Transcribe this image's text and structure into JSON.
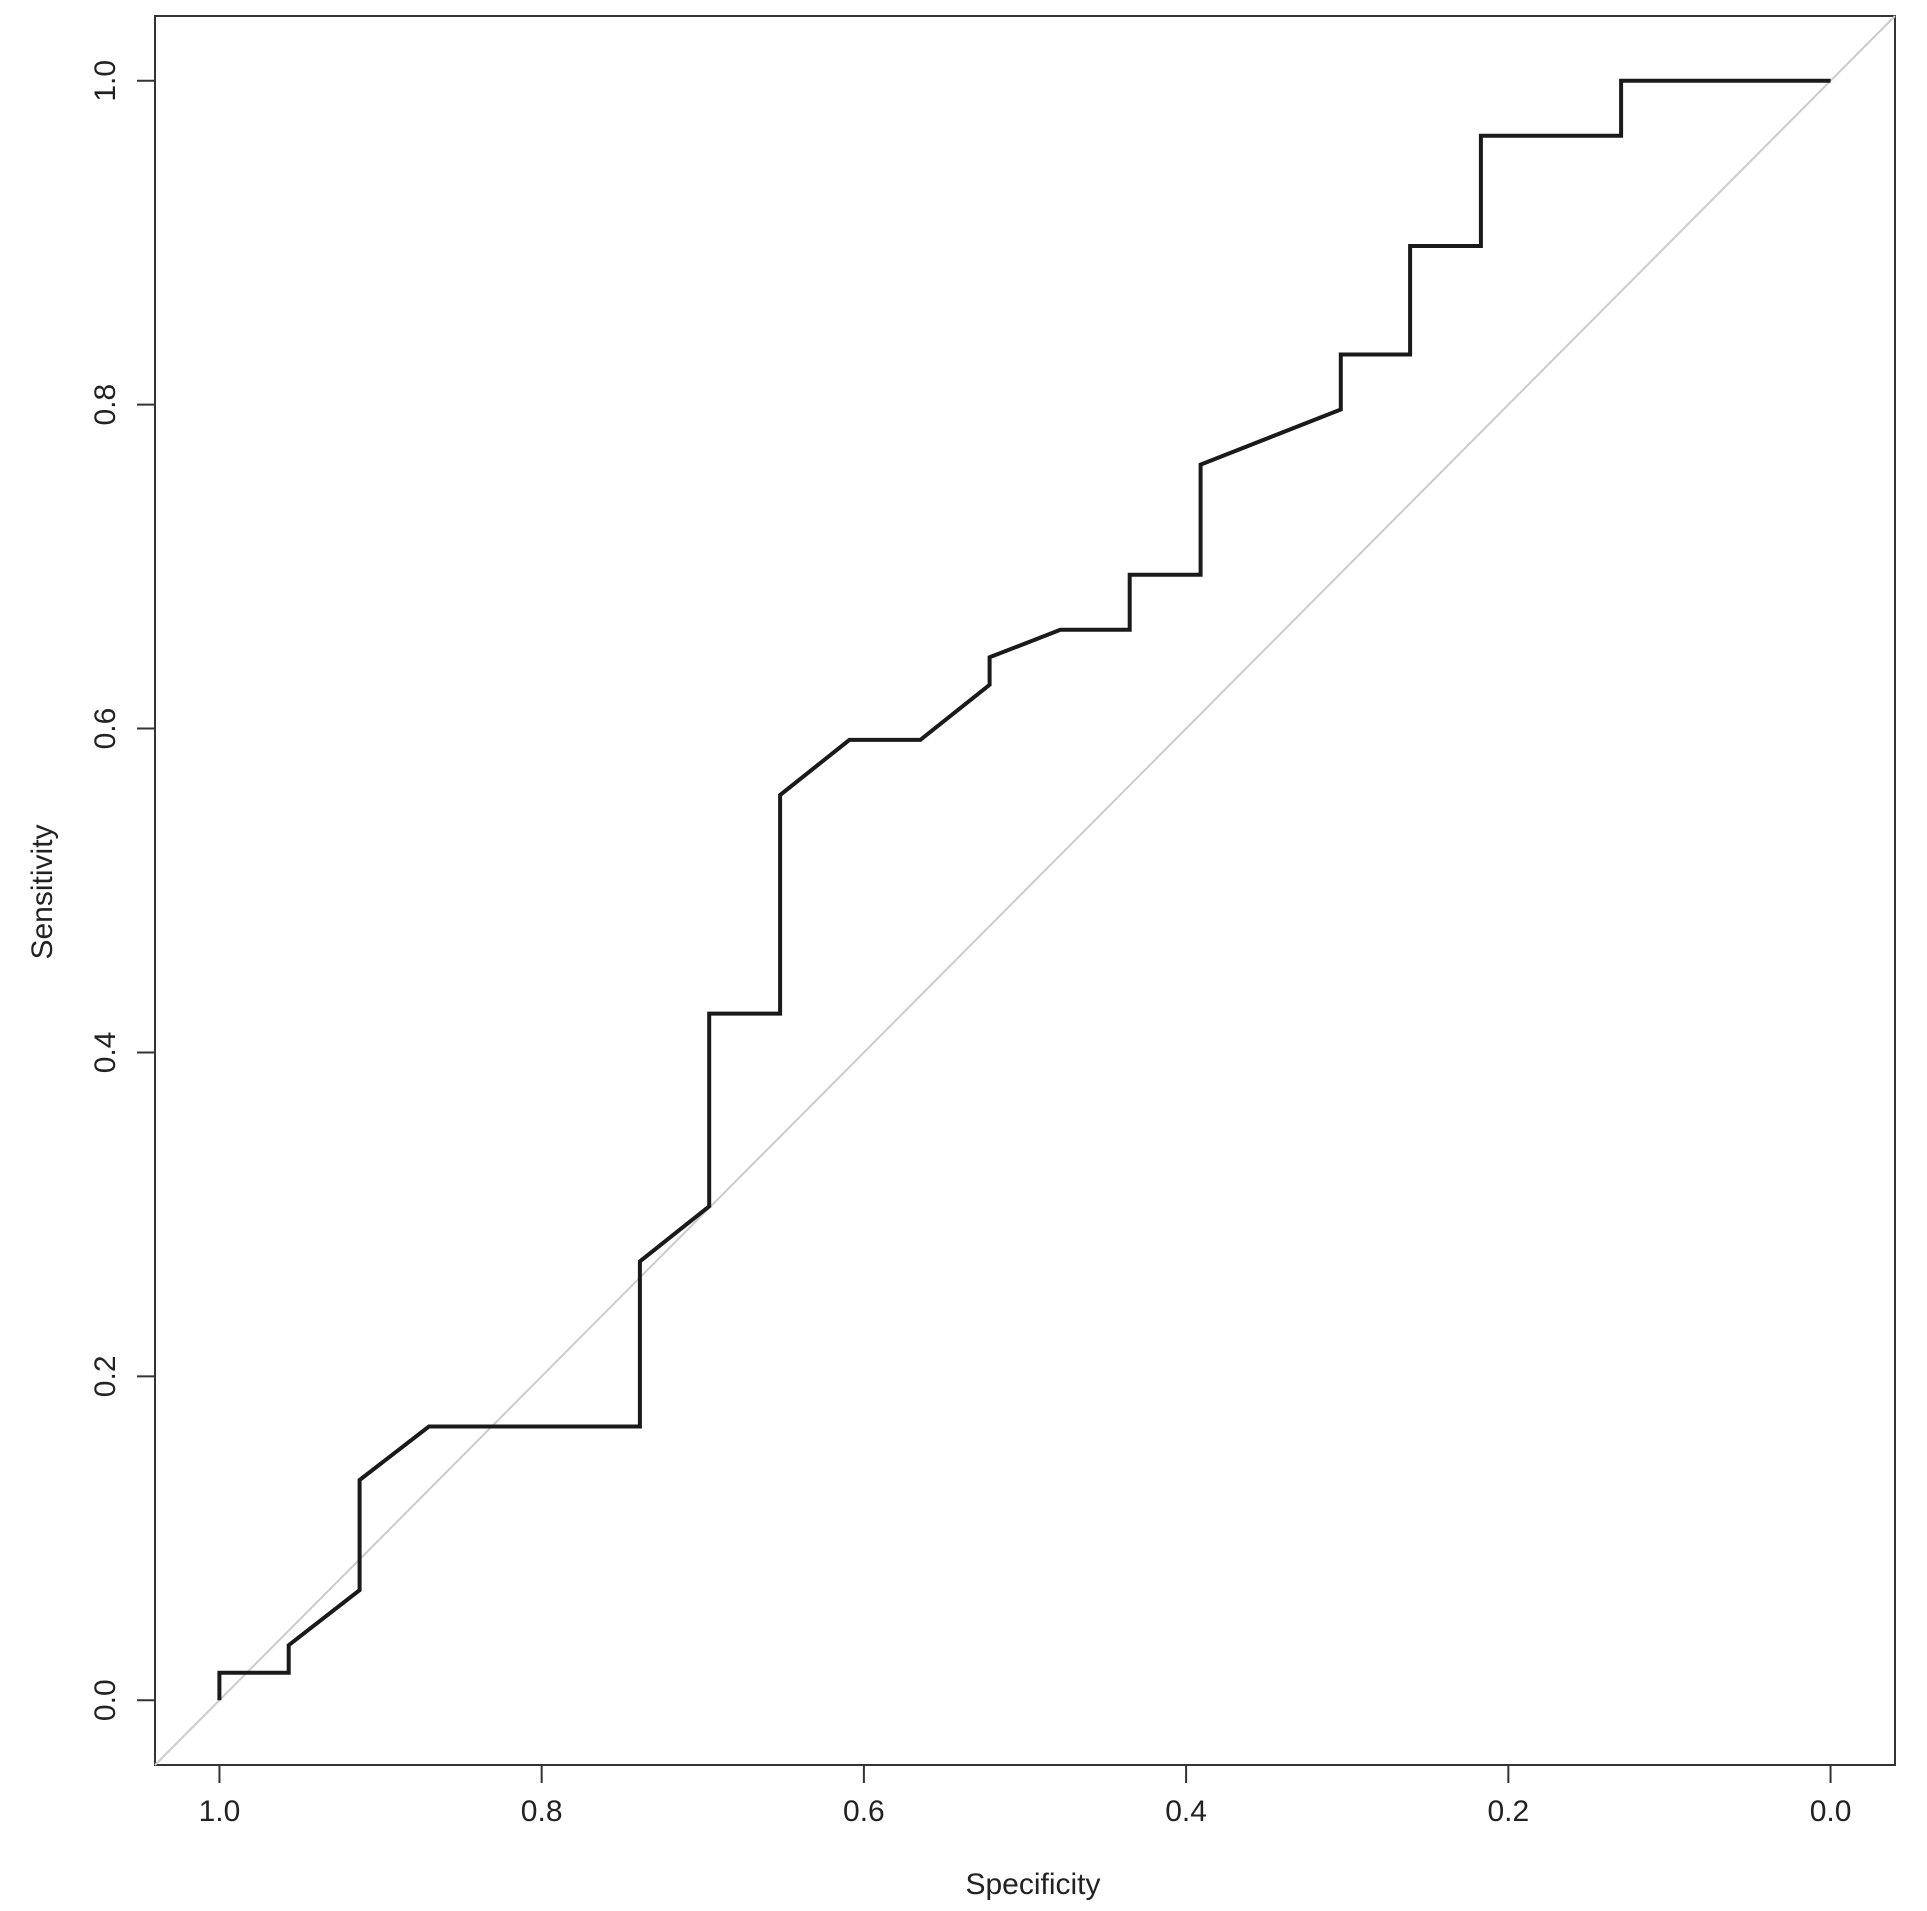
{
  "chart_data": {
    "type": "line",
    "title": "",
    "xlabel": "Specificity",
    "ylabel": "Sensitivity",
    "x_reversed": true,
    "xlim": [
      1.04,
      -0.04
    ],
    "ylim": [
      -0.04,
      1.04
    ],
    "xticks": [
      1.0,
      0.8,
      0.6,
      0.4,
      0.2,
      0.0
    ],
    "yticks": [
      0.0,
      0.2,
      0.4,
      0.6,
      0.8,
      1.0
    ],
    "xtick_labels": [
      "1.0",
      "0.8",
      "0.6",
      "0.4",
      "0.2",
      "0.0"
    ],
    "ytick_labels": [
      "0.0",
      "0.2",
      "0.4",
      "0.6",
      "0.8",
      "1.0"
    ],
    "grid": false,
    "legend": "none",
    "series": [
      {
        "color": "#1a1a1a",
        "x": [
          1.0,
          1.0,
          0.957,
          0.957,
          0.913,
          0.913,
          0.87,
          0.739,
          0.739,
          0.696,
          0.696,
          0.652,
          0.652,
          0.609,
          0.565,
          0.522,
          0.522,
          0.478,
          0.435,
          0.435,
          0.391,
          0.391,
          0.304,
          0.304,
          0.261,
          0.261,
          0.217,
          0.217,
          0.13,
          0.13,
          0.0
        ],
        "y": [
          0.0,
          0.017,
          0.017,
          0.034,
          0.068,
          0.136,
          0.169,
          0.169,
          0.271,
          0.305,
          0.424,
          0.424,
          0.559,
          0.593,
          0.593,
          0.627,
          0.644,
          0.661,
          0.661,
          0.695,
          0.695,
          0.763,
          0.797,
          0.831,
          0.831,
          0.898,
          0.898,
          0.966,
          0.966,
          1.0,
          1.0
        ]
      }
    ],
    "reference_line": {
      "x": [
        1.04,
        -0.04
      ],
      "y": [
        -0.04,
        1.04
      ],
      "color": "#cccccc"
    }
  }
}
